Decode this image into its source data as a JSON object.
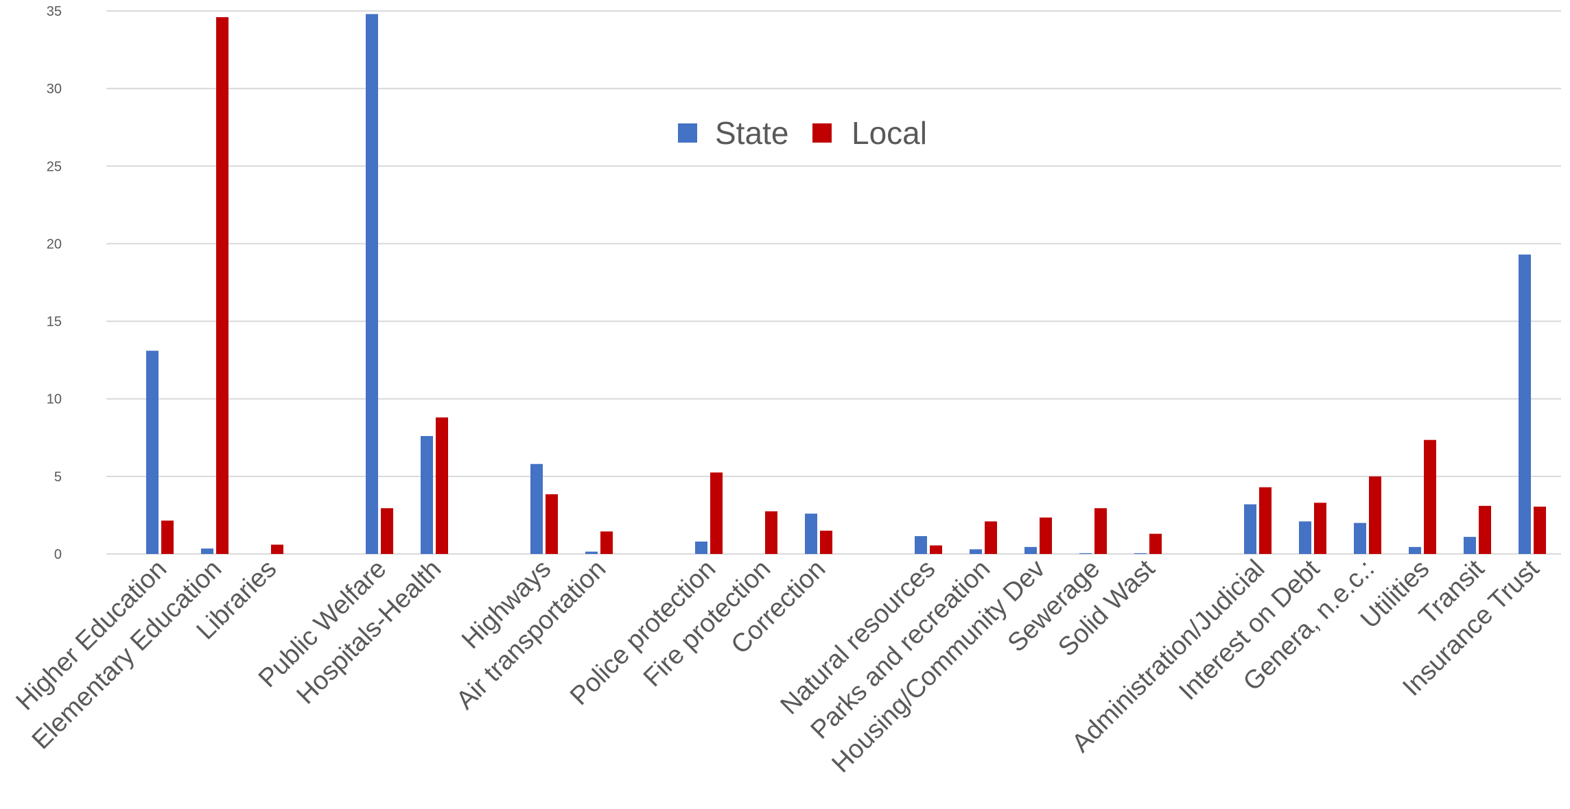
{
  "chart_data": {
    "type": "bar",
    "title": "",
    "xlabel": "",
    "ylabel": "",
    "ylim": [
      0,
      35
    ],
    "yticks": [
      0,
      5,
      10,
      15,
      20,
      25,
      30,
      35
    ],
    "grid": true,
    "legend_position": "top-center",
    "groups": [
      [
        "Higher Education",
        "Elementary Education",
        "Libraries"
      ],
      [
        "Public Welfare",
        "Hospitals-Health"
      ],
      [
        "Highways",
        "Air transportation"
      ],
      [
        "Police protection",
        "Fire protection",
        "Correction"
      ],
      [
        "Natural resources",
        "Parks and recreation",
        "Housing/Community Dev",
        "Sewerage",
        "Solid Wast"
      ],
      [
        "Administration/Judicial",
        "Interest on Debt",
        "Genera, n.e.c.:",
        "Utilities",
        "Transit",
        "Insurance Trust"
      ]
    ],
    "categories": [
      "Higher Education",
      "Elementary Education",
      "Libraries",
      "Public Welfare",
      "Hospitals-Health",
      "Highways",
      "Air transportation",
      "Police protection",
      "Fire protection",
      "Correction",
      "Natural resources",
      "Parks and recreation",
      "Housing/Community Dev",
      "Sewerage",
      "Solid Wast",
      "Administration/Judicial",
      "Interest on Debt",
      "Genera, n.e.c.:",
      "Utilities",
      "Transit",
      "Insurance Trust"
    ],
    "series": [
      {
        "name": "State",
        "color": "#4472c4",
        "values": [
          13.1,
          0.35,
          0.0,
          34.8,
          7.6,
          5.8,
          0.15,
          0.8,
          0.0,
          2.6,
          1.15,
          0.3,
          0.45,
          0.05,
          0.05,
          3.2,
          2.1,
          2.0,
          0.45,
          1.1,
          19.3
        ]
      },
      {
        "name": "Local",
        "color": "#c00000",
        "values": [
          2.15,
          34.6,
          0.6,
          2.95,
          8.8,
          3.85,
          1.45,
          5.25,
          2.75,
          1.5,
          0.55,
          2.1,
          2.35,
          2.95,
          1.3,
          4.3,
          3.3,
          5.0,
          7.35,
          3.1,
          3.05
        ]
      }
    ]
  }
}
